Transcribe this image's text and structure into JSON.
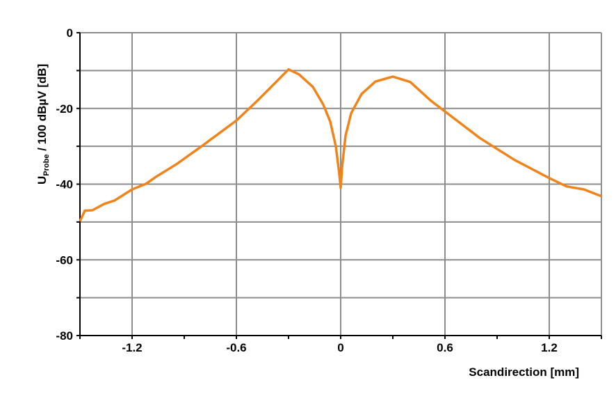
{
  "chart_data": {
    "type": "line",
    "title": "",
    "xlabel": "Scandirection [mm]",
    "ylabel_main": "U",
    "ylabel_sub": "Probe",
    "ylabel_rest": " / 100 dBµV [dB]",
    "xlim": [
      -1.5,
      1.5
    ],
    "ylim": [
      -80,
      0
    ],
    "xticks": [
      -1.2,
      -0.6,
      0,
      0.6,
      1.2
    ],
    "xtick_labels": [
      "-1.2",
      "-0.6",
      "0",
      "0.6",
      "1.2"
    ],
    "yticks": [
      0,
      -20,
      -40,
      -60,
      -80
    ],
    "ytick_labels": [
      "0",
      "-20",
      "-40",
      "-60",
      "-80"
    ],
    "grid": true,
    "line_color": "#f0831a",
    "series": [
      {
        "x": [
          -1.5,
          -1.472,
          -1.428,
          -1.36,
          -1.3,
          -1.2,
          -1.12,
          -1.06,
          -0.94,
          -0.8,
          -0.6,
          -0.48,
          -0.38,
          -0.3,
          -0.24,
          -0.16,
          -0.1,
          -0.06,
          -0.028,
          -0.008,
          0,
          0.008,
          0.028,
          0.06,
          0.12,
          0.2,
          0.3,
          0.4,
          0.52,
          0.6,
          0.8,
          1.0,
          1.2,
          1.3,
          1.4,
          1.5
        ],
        "y": [
          -49.8,
          -47,
          -46.9,
          -45.2,
          -44.3,
          -41.4,
          -39.9,
          -38,
          -34.6,
          -30,
          -23.2,
          -18,
          -13.4,
          -9.7,
          -11,
          -14.3,
          -19,
          -23.5,
          -30,
          -37.3,
          -41,
          -35.5,
          -27.2,
          -21.3,
          -16.2,
          -12.9,
          -11.6,
          -13,
          -18,
          -20.8,
          -27.8,
          -33.6,
          -38.4,
          -40.6,
          -41.4,
          -43.2
        ]
      }
    ]
  }
}
